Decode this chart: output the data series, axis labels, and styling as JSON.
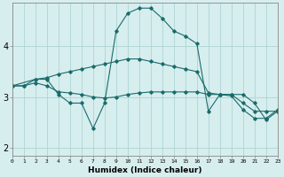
{
  "xlabel": "Humidex (Indice chaleur)",
  "ylabel": "",
  "background_color": "#d7eeee",
  "grid_color": "#aed4d4",
  "line_color": "#1a6b6b",
  "xlim": [
    0,
    23
  ],
  "ylim": [
    1.85,
    4.85
  ],
  "yticks": [
    2,
    3,
    4
  ],
  "xticks": [
    0,
    1,
    2,
    3,
    4,
    5,
    6,
    7,
    8,
    9,
    10,
    11,
    12,
    13,
    14,
    15,
    16,
    17,
    18,
    19,
    20,
    21,
    22,
    23
  ],
  "series1_x": [
    0,
    1,
    2,
    3,
    4,
    5,
    6,
    7,
    8,
    9,
    10,
    11,
    12,
    13,
    14,
    15,
    16,
    17,
    18,
    19,
    20,
    21,
    22,
    23
  ],
  "series1_y": [
    3.22,
    3.22,
    3.35,
    3.38,
    3.45,
    3.5,
    3.55,
    3.6,
    3.65,
    3.7,
    3.75,
    3.75,
    3.7,
    3.65,
    3.6,
    3.55,
    3.5,
    3.08,
    3.05,
    3.05,
    2.88,
    2.72,
    2.72,
    2.72
  ],
  "series2_x": [
    0,
    1,
    2,
    3,
    4,
    5,
    6,
    7,
    8,
    9,
    10,
    11,
    12,
    13,
    14,
    15,
    16,
    17,
    18,
    19,
    20,
    21,
    22,
    23
  ],
  "series2_y": [
    3.22,
    3.22,
    3.28,
    3.22,
    3.1,
    3.08,
    3.05,
    3.0,
    2.98,
    3.0,
    3.05,
    3.08,
    3.1,
    3.1,
    3.1,
    3.1,
    3.1,
    3.05,
    3.05,
    3.02,
    2.75,
    2.58,
    2.58,
    2.75
  ],
  "series3_x": [
    0,
    2,
    3,
    4,
    5,
    6,
    7,
    8,
    9,
    10,
    11,
    12,
    13,
    14,
    15,
    16,
    17,
    18,
    19,
    20,
    21,
    22,
    23
  ],
  "series3_y": [
    3.22,
    3.35,
    3.35,
    3.05,
    2.88,
    2.88,
    2.38,
    2.88,
    4.3,
    4.65,
    4.75,
    4.75,
    4.55,
    4.3,
    4.2,
    4.05,
    2.72,
    3.05,
    3.05,
    3.05,
    2.88,
    2.55,
    2.72
  ]
}
